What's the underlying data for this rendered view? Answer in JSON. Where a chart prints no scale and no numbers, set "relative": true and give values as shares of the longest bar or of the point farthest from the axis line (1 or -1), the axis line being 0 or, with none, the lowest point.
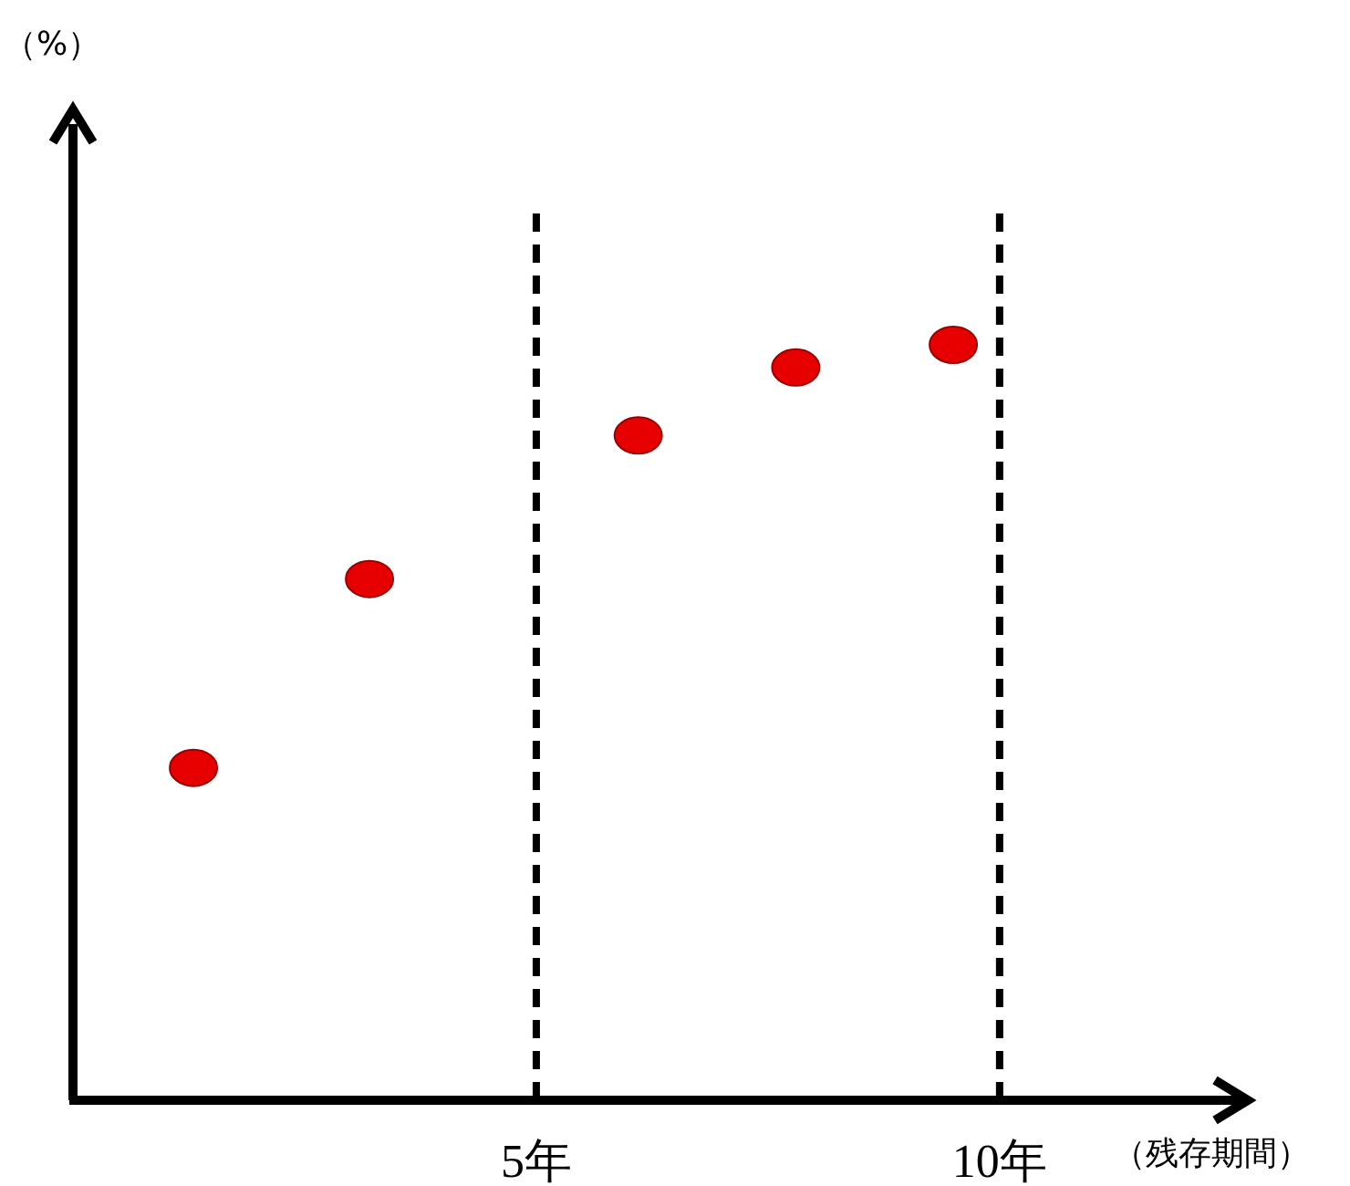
{
  "chart_data": {
    "type": "scatter",
    "relative": true,
    "annotations": [
      "（%）"
    ],
    "xlabel": "（残存期間）",
    "x": [
      1.3,
      3.2,
      6.1,
      7.8,
      9.5
    ],
    "series": [
      {
        "color": "#e60000",
        "values": [
          0.44,
          0.69,
          0.88,
          0.97,
          1
        ]
      }
    ],
    "xlim": [
      0,
      12.6
    ],
    "xticks": [
      {
        "value": 5,
        "label": "5年"
      },
      {
        "value": 10,
        "label": "10年"
      }
    ],
    "ref_lines": [
      {
        "axis": "x",
        "value": 5,
        "line_style": "dashed"
      },
      {
        "axis": "x",
        "value": 10,
        "line_style": "dashed"
      }
    ],
    "marker": "circle"
  }
}
